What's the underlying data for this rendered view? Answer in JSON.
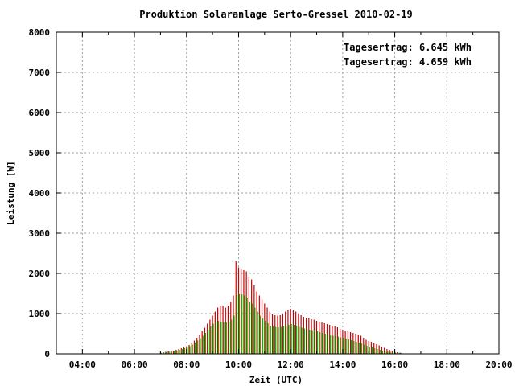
{
  "chart_data": {
    "type": "bar",
    "title": "Produktion Solaranlage Serto-Gressel 2010-02-19",
    "xlabel": "Zeit (UTC)",
    "ylabel": "Leistung [W]",
    "xlim": [
      3,
      20
    ],
    "ylim": [
      0,
      8000
    ],
    "x_tick_labels": [
      "04:00",
      "06:00",
      "08:00",
      "10:00",
      "12:00",
      "14:00",
      "16:00",
      "18:00",
      "20:00"
    ],
    "x_tick_values": [
      4,
      6,
      8,
      10,
      12,
      14,
      16,
      18,
      20
    ],
    "y_tick_labels": [
      "0",
      "1000",
      "2000",
      "3000",
      "4000",
      "5000",
      "6000",
      "7000",
      "8000"
    ],
    "y_tick_values": [
      0,
      1000,
      2000,
      3000,
      4000,
      5000,
      6000,
      7000,
      8000
    ],
    "grid": true,
    "legend_position": "top-right",
    "x": [
      7.0,
      7.1,
      7.2,
      7.3,
      7.4,
      7.5,
      7.6,
      7.7,
      7.8,
      7.9,
      8.0,
      8.1,
      8.2,
      8.3,
      8.4,
      8.5,
      8.6,
      8.7,
      8.8,
      8.9,
      9.0,
      9.1,
      9.2,
      9.3,
      9.4,
      9.5,
      9.6,
      9.7,
      9.8,
      9.9,
      10.0,
      10.1,
      10.2,
      10.3,
      10.4,
      10.5,
      10.6,
      10.7,
      10.8,
      10.9,
      11.0,
      11.1,
      11.2,
      11.3,
      11.4,
      11.5,
      11.6,
      11.7,
      11.8,
      11.9,
      12.0,
      12.1,
      12.2,
      12.3,
      12.4,
      12.5,
      12.6,
      12.7,
      12.8,
      12.9,
      13.0,
      13.1,
      13.2,
      13.3,
      13.4,
      13.5,
      13.6,
      13.7,
      13.8,
      13.9,
      14.0,
      14.1,
      14.2,
      14.3,
      14.4,
      14.5,
      14.6,
      14.7,
      14.8,
      14.9,
      15.0,
      15.1,
      15.2,
      15.3,
      15.4,
      15.5,
      15.6,
      15.7,
      15.8,
      15.9,
      16.0,
      16.1,
      16.2
    ],
    "series": [
      {
        "name": "Tagesertrag: 6.645 kWh",
        "color": "#cc0000",
        "values": [
          30,
          40,
          50,
          60,
          70,
          80,
          100,
          120,
          140,
          160,
          180,
          220,
          270,
          330,
          400,
          480,
          560,
          650,
          750,
          850,
          950,
          1050,
          1150,
          1200,
          1180,
          1150,
          1200,
          1300,
          1450,
          2300,
          2150,
          2100,
          2080,
          2050,
          1900,
          1850,
          1700,
          1550,
          1450,
          1350,
          1250,
          1150,
          1050,
          980,
          960,
          950,
          960,
          980,
          1050,
          1100,
          1120,
          1080,
          1050,
          1000,
          960,
          920,
          900,
          880,
          860,
          850,
          820,
          800,
          780,
          760,
          740,
          720,
          700,
          680,
          660,
          620,
          600,
          580,
          560,
          540,
          520,
          500,
          480,
          450,
          400,
          350,
          320,
          300,
          270,
          240,
          210,
          180,
          150,
          120,
          100,
          80,
          60,
          40,
          30
        ]
      },
      {
        "name": "Tagesertrag: 4.659 kWh",
        "color": "#00bb00",
        "values": [
          25,
          35,
          45,
          55,
          60,
          70,
          85,
          100,
          120,
          140,
          160,
          190,
          230,
          280,
          330,
          390,
          450,
          520,
          600,
          680,
          750,
          800,
          820,
          800,
          780,
          780,
          800,
          850,
          950,
          1450,
          1500,
          1480,
          1450,
          1400,
          1300,
          1250,
          1150,
          1050,
          950,
          880,
          820,
          760,
          700,
          680,
          670,
          660,
          670,
          680,
          700,
          720,
          740,
          720,
          700,
          670,
          650,
          630,
          610,
          600,
          590,
          580,
          560,
          540,
          520,
          500,
          480,
          460,
          450,
          440,
          430,
          410,
          400,
          380,
          360,
          340,
          320,
          300,
          280,
          260,
          230,
          200,
          180,
          160,
          140,
          120,
          100,
          80,
          70,
          60,
          50,
          40,
          30,
          25,
          20
        ]
      }
    ]
  }
}
